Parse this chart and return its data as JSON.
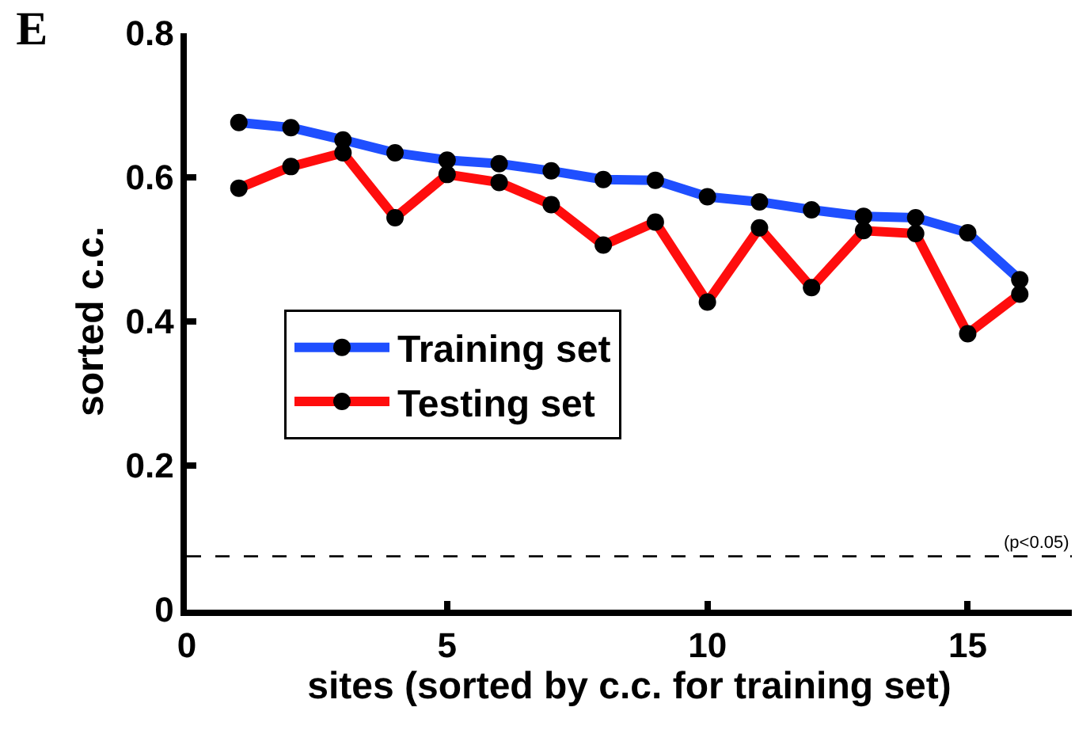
{
  "chart_data": {
    "type": "line",
    "title": "E",
    "xlabel": "sites (sorted by c.c. for training set)",
    "ylabel": "sorted c.c.",
    "x": [
      1,
      2,
      3,
      4,
      5,
      6,
      7,
      8,
      9,
      10,
      11,
      12,
      13,
      14,
      15,
      16
    ],
    "series": [
      {
        "name": "Training set",
        "color": "#1f4fff",
        "values": [
          0.676,
          0.669,
          0.652,
          0.634,
          0.624,
          0.619,
          0.609,
          0.597,
          0.596,
          0.573,
          0.566,
          0.555,
          0.546,
          0.544,
          0.523,
          0.458
        ]
      },
      {
        "name": "Testing set",
        "color": "#ff0d0d",
        "values": [
          0.585,
          0.615,
          0.634,
          0.544,
          0.604,
          0.593,
          0.562,
          0.506,
          0.538,
          0.427,
          0.53,
          0.447,
          0.526,
          0.522,
          0.383,
          0.438
        ]
      }
    ],
    "xlim": [
      0,
      17
    ],
    "xticks": [
      0,
      5,
      10,
      15
    ],
    "ylim": [
      0,
      0.8
    ],
    "yticks": [
      0,
      0.2,
      0.4,
      0.6,
      0.8
    ],
    "ref_lines": [
      {
        "axis": "y",
        "value": 0.074,
        "label": "(p<0.05)",
        "color": "#000000",
        "line_style": "dashed"
      }
    ],
    "marker": "circle",
    "line_style": "solid",
    "legend": "left"
  }
}
